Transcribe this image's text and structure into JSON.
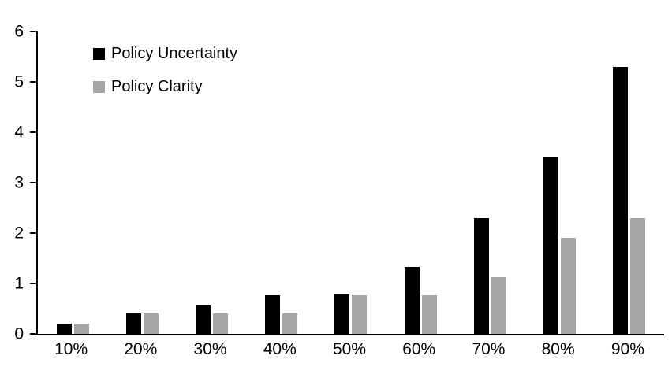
{
  "chart_data": {
    "type": "bar",
    "title": "",
    "xlabel": "",
    "ylabel": "",
    "categories": [
      "10%",
      "20%",
      "30%",
      "40%",
      "50%",
      "60%",
      "70%",
      "80%",
      "90%"
    ],
    "series": [
      {
        "name": "Policy Uncertainty",
        "color": "#000000",
        "values": [
          0.2,
          0.4,
          0.57,
          0.77,
          0.78,
          1.33,
          2.3,
          3.5,
          5.3
        ]
      },
      {
        "name": "Policy Clarity",
        "color": "#a6a6a6",
        "values": [
          0.2,
          0.4,
          0.4,
          0.4,
          0.77,
          0.77,
          1.13,
          1.9,
          2.3
        ]
      }
    ],
    "ylim": [
      0,
      6
    ],
    "yticks": [
      0,
      1,
      2,
      3,
      4,
      5,
      6
    ],
    "grid": false,
    "legend_position": "top-left-inside",
    "background_color": "#ffffff"
  }
}
